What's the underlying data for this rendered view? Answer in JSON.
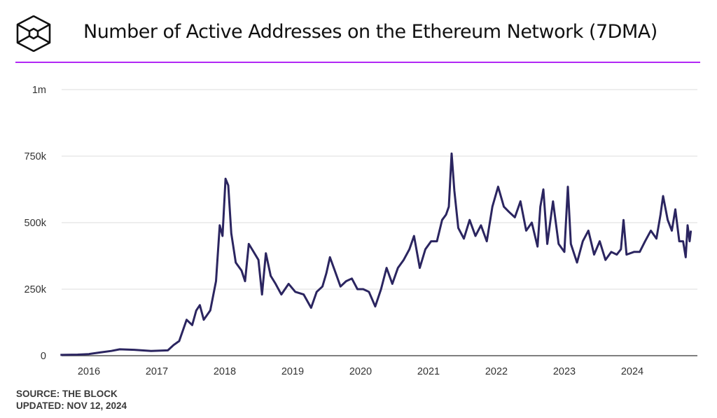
{
  "chart_data": {
    "type": "line",
    "title": "Number of Active Addresses on the Ethereum Network (7DMA)",
    "xlabel": "",
    "ylabel": "",
    "ylim": [
      0,
      1000000
    ],
    "xlim": [
      "2015-08-01",
      "2024-11-12"
    ],
    "grid": true,
    "y_ticks": [
      {
        "value": 0,
        "label": "0"
      },
      {
        "value": 250000,
        "label": "250k"
      },
      {
        "value": 500000,
        "label": "500k"
      },
      {
        "value": 750000,
        "label": "750k"
      },
      {
        "value": 1000000,
        "label": "1m"
      }
    ],
    "x_ticks": [
      "2016",
      "2017",
      "2018",
      "2019",
      "2020",
      "2021",
      "2022",
      "2023",
      "2024"
    ],
    "line_color": "#2b2560",
    "series": [
      {
        "points": [
          [
            "2015-08-01",
            3000
          ],
          [
            "2015-11-01",
            4000
          ],
          [
            "2016-01-01",
            6000
          ],
          [
            "2016-03-01",
            12000
          ],
          [
            "2016-05-01",
            18000
          ],
          [
            "2016-06-15",
            24000
          ],
          [
            "2016-09-01",
            22000
          ],
          [
            "2016-12-01",
            18000
          ],
          [
            "2017-03-01",
            20000
          ],
          [
            "2017-04-01",
            40000
          ],
          [
            "2017-05-01",
            55000
          ],
          [
            "2017-06-10",
            135000
          ],
          [
            "2017-07-10",
            115000
          ],
          [
            "2017-08-01",
            170000
          ],
          [
            "2017-08-20",
            190000
          ],
          [
            "2017-09-10",
            135000
          ],
          [
            "2017-10-15",
            170000
          ],
          [
            "2017-11-15",
            280000
          ],
          [
            "2017-12-05",
            490000
          ],
          [
            "2017-12-20",
            450000
          ],
          [
            "2018-01-05",
            665000
          ],
          [
            "2018-01-20",
            640000
          ],
          [
            "2018-02-05",
            460000
          ],
          [
            "2018-03-01",
            350000
          ],
          [
            "2018-04-01",
            320000
          ],
          [
            "2018-04-20",
            280000
          ],
          [
            "2018-05-10",
            420000
          ],
          [
            "2018-06-01",
            395000
          ],
          [
            "2018-07-01",
            360000
          ],
          [
            "2018-07-20",
            230000
          ],
          [
            "2018-08-10",
            385000
          ],
          [
            "2018-09-05",
            300000
          ],
          [
            "2018-10-01",
            270000
          ],
          [
            "2018-11-01",
            230000
          ],
          [
            "2018-12-10",
            270000
          ],
          [
            "2019-01-15",
            240000
          ],
          [
            "2019-03-01",
            230000
          ],
          [
            "2019-04-10",
            180000
          ],
          [
            "2019-05-10",
            240000
          ],
          [
            "2019-06-10",
            260000
          ],
          [
            "2019-07-01",
            310000
          ],
          [
            "2019-07-20",
            370000
          ],
          [
            "2019-08-15",
            320000
          ],
          [
            "2019-09-15",
            260000
          ],
          [
            "2019-10-15",
            280000
          ],
          [
            "2019-11-15",
            290000
          ],
          [
            "2019-12-15",
            250000
          ],
          [
            "2020-01-15",
            250000
          ],
          [
            "2020-02-15",
            240000
          ],
          [
            "2020-03-20",
            185000
          ],
          [
            "2020-04-20",
            250000
          ],
          [
            "2020-05-20",
            330000
          ],
          [
            "2020-06-20",
            270000
          ],
          [
            "2020-07-20",
            330000
          ],
          [
            "2020-08-20",
            360000
          ],
          [
            "2020-09-20",
            400000
          ],
          [
            "2020-10-15",
            450000
          ],
          [
            "2020-11-15",
            330000
          ],
          [
            "2020-12-15",
            400000
          ],
          [
            "2021-01-15",
            430000
          ],
          [
            "2021-02-15",
            430000
          ],
          [
            "2021-03-15",
            510000
          ],
          [
            "2021-04-05",
            530000
          ],
          [
            "2021-04-20",
            560000
          ],
          [
            "2021-05-05",
            760000
          ],
          [
            "2021-05-20",
            620000
          ],
          [
            "2021-06-10",
            480000
          ],
          [
            "2021-07-10",
            440000
          ],
          [
            "2021-08-10",
            510000
          ],
          [
            "2021-09-10",
            450000
          ],
          [
            "2021-10-10",
            490000
          ],
          [
            "2021-11-10",
            430000
          ],
          [
            "2021-12-10",
            560000
          ],
          [
            "2022-01-10",
            635000
          ],
          [
            "2022-02-10",
            560000
          ],
          [
            "2022-03-10",
            540000
          ],
          [
            "2022-04-10",
            520000
          ],
          [
            "2022-05-10",
            580000
          ],
          [
            "2022-06-10",
            470000
          ],
          [
            "2022-07-10",
            500000
          ],
          [
            "2022-08-10",
            410000
          ],
          [
            "2022-08-25",
            560000
          ],
          [
            "2022-09-10",
            625000
          ],
          [
            "2022-10-01",
            420000
          ],
          [
            "2022-11-01",
            580000
          ],
          [
            "2022-12-01",
            420000
          ],
          [
            "2023-01-01",
            390000
          ],
          [
            "2023-01-20",
            635000
          ],
          [
            "2023-02-05",
            420000
          ],
          [
            "2023-03-10",
            350000
          ],
          [
            "2023-04-10",
            430000
          ],
          [
            "2023-05-10",
            470000
          ],
          [
            "2023-06-10",
            380000
          ],
          [
            "2023-07-10",
            430000
          ],
          [
            "2023-08-10",
            360000
          ],
          [
            "2023-09-10",
            390000
          ],
          [
            "2023-10-10",
            380000
          ],
          [
            "2023-11-01",
            400000
          ],
          [
            "2023-11-15",
            510000
          ],
          [
            "2023-12-01",
            380000
          ],
          [
            "2024-01-10",
            390000
          ],
          [
            "2024-02-10",
            390000
          ],
          [
            "2024-03-10",
            430000
          ],
          [
            "2024-04-10",
            470000
          ],
          [
            "2024-05-10",
            440000
          ],
          [
            "2024-06-01",
            530000
          ],
          [
            "2024-06-15",
            600000
          ],
          [
            "2024-07-10",
            510000
          ],
          [
            "2024-08-01",
            470000
          ],
          [
            "2024-08-20",
            550000
          ],
          [
            "2024-09-10",
            430000
          ],
          [
            "2024-10-01",
            430000
          ],
          [
            "2024-10-15",
            370000
          ],
          [
            "2024-10-25",
            490000
          ],
          [
            "2024-11-05",
            430000
          ],
          [
            "2024-11-12",
            470000
          ]
        ]
      }
    ]
  },
  "header": {
    "title": "Number of Active Addresses on the Ethereum Network (7DMA)",
    "logo_icon": "the-block-cube-logo",
    "accent_color": "#b128f5"
  },
  "footer": {
    "source": "SOURCE: THE BLOCK",
    "updated": "UPDATED: NOV 12, 2024"
  }
}
